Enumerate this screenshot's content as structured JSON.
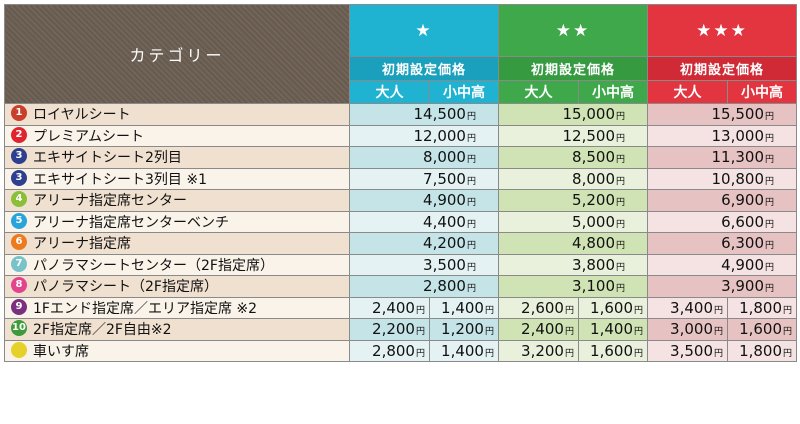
{
  "header": {
    "category_label": "カテゴリー",
    "tiers": [
      {
        "label": "★",
        "color": "#1fb3d1"
      },
      {
        "label": "★★",
        "color": "#3ea84a"
      },
      {
        "label": "★★★",
        "color": "#e23540"
      }
    ],
    "initial_price_label": "初期設定価格",
    "adult_label": "大人",
    "child_label": "小中高"
  },
  "yen": "円",
  "rows": [
    {
      "num": "1",
      "badge_color": "#c8402b",
      "label": "ロイヤルシート",
      "prices": [
        "14,500",
        "15,000",
        "15,500"
      ]
    },
    {
      "num": "2",
      "badge_color": "#e0242e",
      "label": "プレミアムシート",
      "prices": [
        "12,000",
        "12,500",
        "13,000"
      ]
    },
    {
      "num": "3",
      "badge_color": "#2f3f8f",
      "label": "エキサイトシート2列目",
      "prices": [
        "8,000",
        "8,500",
        "11,300"
      ]
    },
    {
      "num": "3",
      "badge_color": "#2f3f8f",
      "label": "エキサイトシート3列目 ※1",
      "prices": [
        "7,500",
        "8,000",
        "10,800"
      ]
    },
    {
      "num": "4",
      "badge_color": "#8bbf3a",
      "label": "アリーナ指定席センター",
      "prices": [
        "4,900",
        "5,200",
        "6,900"
      ]
    },
    {
      "num": "5",
      "badge_color": "#29a4db",
      "label": "アリーナ指定席センターベンチ",
      "prices": [
        "4,400",
        "5,000",
        "6,600"
      ]
    },
    {
      "num": "6",
      "badge_color": "#ee7a1e",
      "label": "アリーナ指定席",
      "prices": [
        "4,200",
        "4,800",
        "6,300"
      ]
    },
    {
      "num": "7",
      "badge_color": "#77c3c9",
      "label": "パノラマシートセンター（2F指定席）",
      "prices": [
        "3,500",
        "3,800",
        "4,900"
      ]
    },
    {
      "num": "8",
      "badge_color": "#e2458e",
      "label": "パノラマシート（2F指定席）",
      "prices": [
        "2,800",
        "3,100",
        "3,900"
      ]
    },
    {
      "num": "9",
      "badge_color": "#7b2f7f",
      "label": "1Fエンド指定席／エリア指定席 ※2",
      "prices": [
        "2,400",
        "1,400",
        "2,600",
        "1,600",
        "3,400",
        "1,800"
      ]
    },
    {
      "num": "10",
      "badge_color": "#3f9a3a",
      "label": "2F指定席／2F自由※2",
      "prices": [
        "2,200",
        "1,200",
        "2,400",
        "1,400",
        "3,000",
        "1,600"
      ]
    },
    {
      "num": "",
      "badge_color": "#e5d12a",
      "label": "車いす席",
      "prices": [
        "2,800",
        "1,400",
        "3,200",
        "1,600",
        "3,500",
        "1,800"
      ]
    }
  ]
}
